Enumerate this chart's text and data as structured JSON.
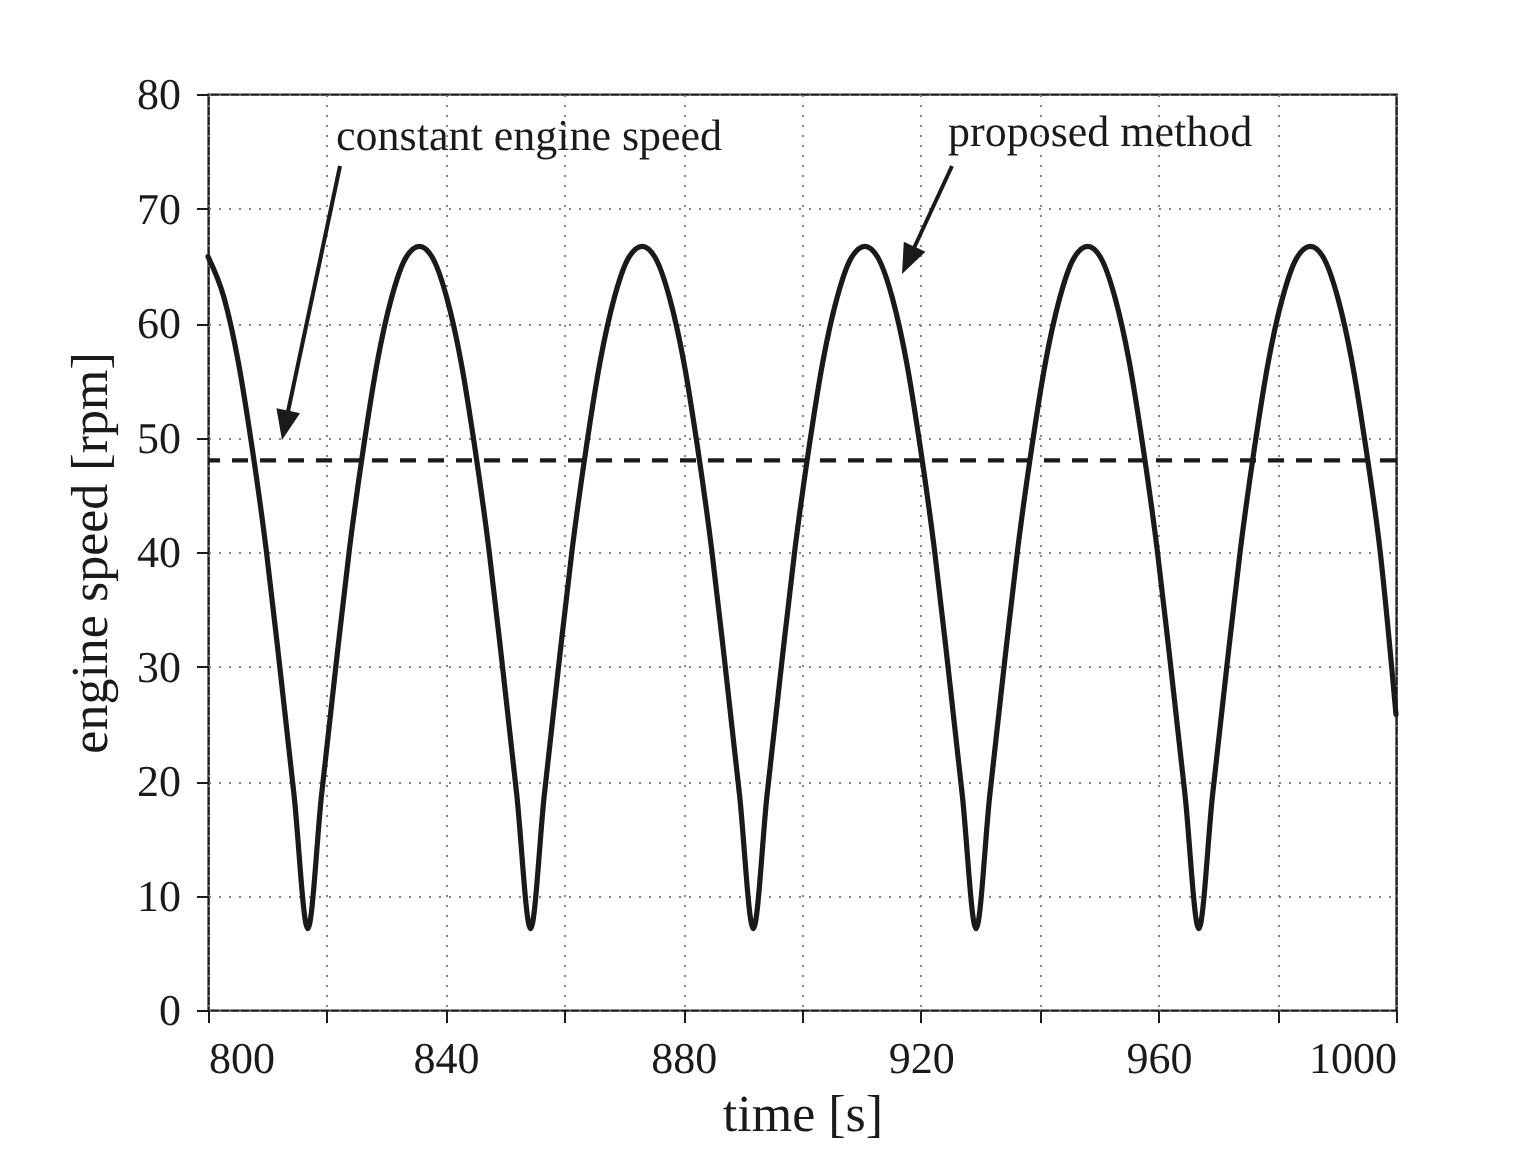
{
  "chart_data": {
    "type": "line",
    "xlabel": "time [s]",
    "ylabel": "engine speed [rpm]",
    "xlim": [
      800,
      1000
    ],
    "ylim": [
      0,
      80
    ],
    "xticks": [
      800,
      {
        "value": 820,
        "label": null
      },
      840,
      {
        "value": 860,
        "label": null
      },
      880,
      {
        "value": 900,
        "label": null
      },
      920,
      {
        "value": 940,
        "label": null
      },
      960,
      {
        "value": 980,
        "label": null
      },
      1000
    ],
    "yticks": [
      0,
      10,
      20,
      30,
      40,
      50,
      60,
      70,
      80
    ],
    "grid": true,
    "series": [
      {
        "color": "#1a1a1a",
        "x": [
          800,
          802.7,
          805.1,
          807.4,
          809.8,
          812.1,
          814.5,
          816.8,
          819.1,
          821.5,
          823.8,
          826.2,
          828.5,
          830.9,
          833.2,
          835.6,
          837.9,
          840.2,
          842.6,
          844.9,
          847.3,
          849.6,
          852.0,
          854.3,
          856.6,
          859.0,
          861.3,
          863.7,
          866.0,
          868.4,
          870.7,
          873.1,
          875.4,
          877.7,
          880.1,
          882.4,
          884.8,
          887.1,
          889.5,
          891.8,
          894.1,
          896.5,
          898.8,
          901.2,
          903.5,
          905.9,
          908.2,
          910.6,
          912.9,
          915.2,
          917.6,
          919.9,
          922.3,
          924.6,
          927.0,
          929.3,
          931.6,
          934.0,
          936.3,
          938.7,
          941.0,
          943.4,
          945.7,
          948.1,
          950.4,
          952.7,
          955.1,
          957.4,
          959.8,
          962.1,
          964.5,
          966.8,
          969.1,
          971.5,
          973.8,
          976.2,
          978.5,
          980.9,
          983.2,
          985.6,
          987.9,
          990.2,
          992.6,
          994.9,
          997.3,
          1000
        ],
        "values": [
          65.8,
          62.2,
          56.6,
          49.2,
          40.2,
          29.9,
          18.7,
          7.1,
          18.7,
          29.9,
          40.2,
          49.2,
          56.6,
          62.2,
          65.6,
          66.7,
          65.6,
          62.2,
          56.6,
          49.2,
          40.2,
          29.9,
          18.7,
          7.1,
          18.7,
          29.9,
          40.2,
          49.2,
          56.6,
          62.2,
          65.6,
          66.7,
          65.6,
          62.2,
          56.6,
          49.2,
          40.2,
          29.9,
          18.7,
          7.1,
          18.7,
          29.9,
          40.2,
          49.2,
          56.6,
          62.2,
          65.6,
          66.7,
          65.6,
          62.2,
          56.6,
          49.2,
          40.2,
          29.9,
          18.7,
          7.1,
          18.7,
          29.9,
          40.2,
          49.2,
          56.6,
          62.2,
          65.6,
          66.7,
          65.6,
          62.2,
          56.6,
          49.2,
          40.2,
          29.9,
          18.7,
          7.1,
          18.7,
          29.9,
          40.2,
          49.2,
          56.6,
          62.2,
          65.6,
          66.7,
          65.6,
          62.2,
          56.6,
          49.2,
          40.2,
          25.8
        ]
      }
    ],
    "ref_lines": [
      {
        "axis": "y",
        "value": 48,
        "line_style": "dashed",
        "color": "#1a1a1a"
      }
    ],
    "annotations": [
      "constant  engine speed",
      "proposed method"
    ]
  }
}
